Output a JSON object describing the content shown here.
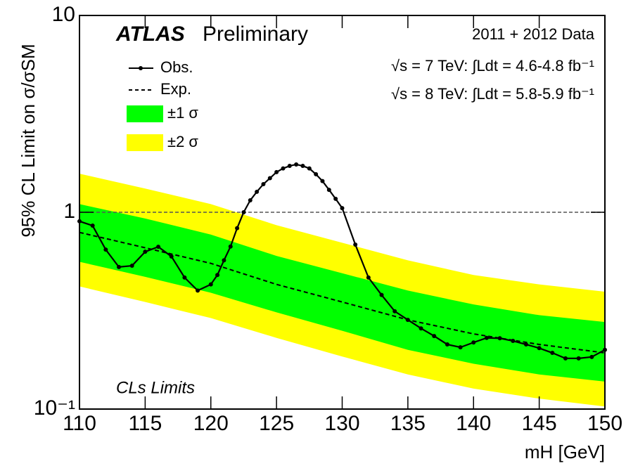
{
  "chart_data": {
    "type": "line",
    "title": "ATLAS",
    "subtitle": "Preliminary",
    "annotations": [
      "2011 + 2012 Data",
      "√s = 7 TeV: ∫Ldt = 4.6-4.8 fb⁻¹",
      "√s = 8 TeV: ∫Ldt = 5.8-5.9 fb⁻¹",
      "CLs Limits"
    ],
    "x_label": "mH [GeV]",
    "y_label": "95% CL Limit on σ/σSM",
    "log_y": true,
    "xlim": [
      110,
      150
    ],
    "ylim": [
      0.1,
      10
    ],
    "xticks": [
      110,
      115,
      120,
      125,
      130,
      135,
      140,
      145,
      150
    ],
    "yticks": [
      {
        "value": 0.1,
        "label": "10⁻¹"
      },
      1,
      10
    ],
    "reference_line": 1,
    "series": [
      {
        "name": "Obs.",
        "color": "#000000",
        "markers": true,
        "x": [
          110,
          111,
          112,
          113,
          114,
          115,
          116,
          117,
          118,
          119,
          120,
          120.5,
          121,
          121.5,
          122,
          122.5,
          123,
          123.5,
          124,
          124.5,
          125,
          125.5,
          126,
          126.5,
          127,
          127.5,
          128,
          128.5,
          129,
          129.5,
          130,
          131,
          132,
          133,
          134,
          135,
          136,
          137,
          138,
          139,
          140,
          141,
          142,
          143,
          144,
          145,
          146,
          147,
          148,
          149,
          150
        ],
        "values": [
          0.9,
          0.855,
          0.646,
          0.527,
          0.535,
          0.63,
          0.668,
          0.596,
          0.466,
          0.4,
          0.43,
          0.48,
          0.57,
          0.67,
          0.83,
          1.0,
          1.15,
          1.27,
          1.39,
          1.49,
          1.6,
          1.67,
          1.72,
          1.75,
          1.72,
          1.67,
          1.56,
          1.44,
          1.3,
          1.17,
          1.05,
          0.685,
          0.466,
          0.38,
          0.314,
          0.284,
          0.257,
          0.235,
          0.213,
          0.206,
          0.218,
          0.23,
          0.229,
          0.222,
          0.213,
          0.204,
          0.193,
          0.181,
          0.181,
          0.184,
          0.2
        ]
      },
      {
        "name": "Exp.",
        "color": "#000000",
        "dashed": true,
        "x": [
          110,
          115,
          120,
          125,
          130,
          135,
          140,
          145,
          150
        ],
        "values": [
          0.79,
          0.66,
          0.55,
          0.43,
          0.35,
          0.284,
          0.241,
          0.213,
          0.193
        ]
      }
    ],
    "band_x": [
      110,
      115,
      120,
      125,
      130,
      135,
      140,
      145,
      150
    ],
    "bands": [
      {
        "name": "±2 σ",
        "color": "#ffff00",
        "upper": [
          1.57,
          1.32,
          1.1,
          0.86,
          0.7,
          0.57,
          0.48,
          0.43,
          0.395
        ],
        "lower": [
          0.42,
          0.35,
          0.29,
          0.23,
          0.185,
          0.15,
          0.127,
          0.113,
          0.103
        ]
      },
      {
        "name": "±1 σ",
        "color": "#00ff00",
        "upper": [
          1.1,
          0.93,
          0.77,
          0.6,
          0.49,
          0.4,
          0.34,
          0.3,
          0.277
        ],
        "lower": [
          0.56,
          0.47,
          0.39,
          0.31,
          0.25,
          0.2,
          0.17,
          0.15,
          0.138
        ]
      }
    ]
  }
}
